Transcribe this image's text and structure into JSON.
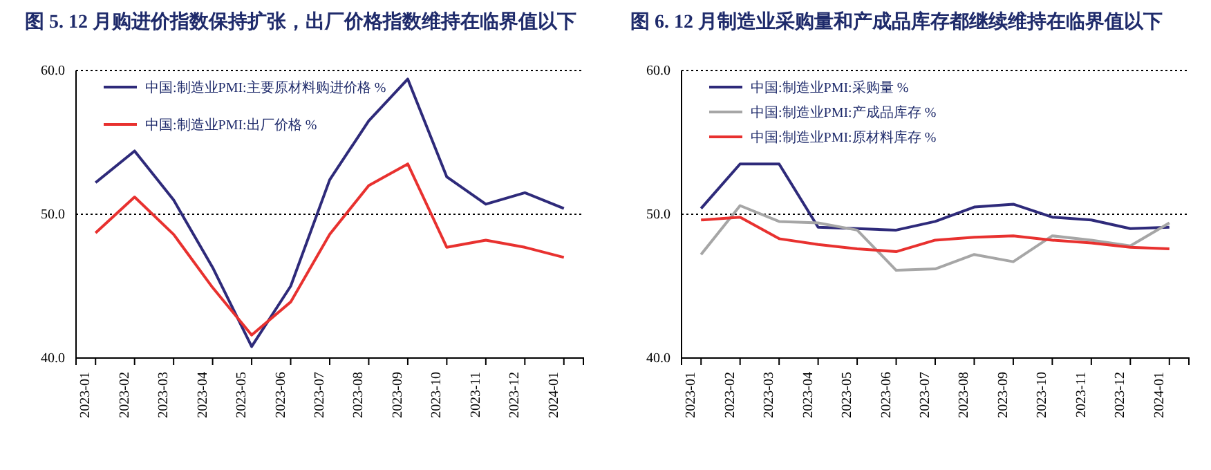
{
  "chart_data": [
    {
      "type": "line",
      "title": "图 5. 12 月购进价指数保持扩张，出厂价格指数维持在临界值以下",
      "categories": [
        "2023-01",
        "2023-02",
        "2023-03",
        "2023-04",
        "2023-05",
        "2023-06",
        "2023-07",
        "2023-08",
        "2023-09",
        "2023-10",
        "2023-11",
        "2023-12",
        "2024-01"
      ],
      "series": [
        {
          "name": "中国:制造业PMI:主要原材料购进价格 %",
          "color": "#2e2a7a",
          "values": [
            52.2,
            54.4,
            51.0,
            46.3,
            40.8,
            45.0,
            52.4,
            56.5,
            59.4,
            52.6,
            50.7,
            51.5,
            50.4
          ]
        },
        {
          "name": "中国:制造业PMI:出厂价格 %",
          "color": "#e8312f",
          "values": [
            48.7,
            51.2,
            48.6,
            44.9,
            41.6,
            43.9,
            48.6,
            52.0,
            53.5,
            47.7,
            48.2,
            47.7,
            47.0
          ]
        }
      ],
      "ylim": [
        40,
        60
      ],
      "yticks": [
        {
          "value": 40,
          "label": "40.0"
        },
        {
          "value": 50,
          "label": "50.0"
        },
        {
          "value": 60,
          "label": "60.0"
        }
      ],
      "grid": "y",
      "legend": "top left"
    },
    {
      "type": "line",
      "title": "图 6. 12 月制造业采购量和产成品库存都继续维持在临界值以下",
      "categories": [
        "2023-01",
        "2023-02",
        "2023-03",
        "2023-04",
        "2023-05",
        "2023-06",
        "2023-07",
        "2023-08",
        "2023-09",
        "2023-10",
        "2023-11",
        "2023-12",
        "2024-01"
      ],
      "series": [
        {
          "name": "中国:制造业PMI:采购量 %",
          "color": "#2e2a7a",
          "values": [
            50.4,
            53.5,
            53.5,
            49.1,
            49.0,
            48.9,
            49.5,
            50.5,
            50.7,
            49.8,
            49.6,
            49.0,
            49.1
          ]
        },
        {
          "name": "中国:制造业PMI:产成品库存 %",
          "color": "#a6a6a6",
          "values": [
            47.2,
            50.6,
            49.5,
            49.4,
            48.9,
            46.1,
            46.2,
            47.2,
            46.7,
            48.5,
            48.2,
            47.8,
            49.4
          ]
        },
        {
          "name": "中国:制造业PMI:原材料库存 %",
          "color": "#e8312f",
          "values": [
            49.6,
            49.8,
            48.3,
            47.9,
            47.6,
            47.4,
            48.2,
            48.4,
            48.5,
            48.2,
            48.0,
            47.7,
            47.6
          ]
        }
      ],
      "ylim": [
        40,
        60
      ],
      "yticks": [
        {
          "value": 40,
          "label": "40.0"
        },
        {
          "value": 50,
          "label": "50.0"
        },
        {
          "value": 60,
          "label": "60.0"
        }
      ],
      "grid": "y",
      "legend": "top left"
    }
  ]
}
